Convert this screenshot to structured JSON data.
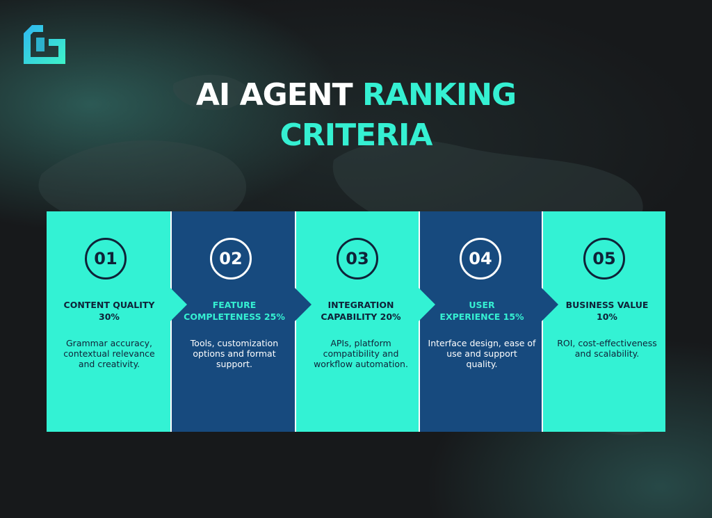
{
  "colors": {
    "accent": "#33f2d4",
    "navy": "#174a7e",
    "dark_text": "#0f2238",
    "background": "#17191b"
  },
  "logo": {
    "icon": "brand-logo-icon"
  },
  "title": {
    "part1": "AI AGENT",
    "part2": "RANKING",
    "part3": "CRITERIA"
  },
  "criteria": [
    {
      "number": "01",
      "heading": "CONTENT QUALITY\n30%",
      "description": "Grammar accuracy,\ncontextual relevance\nand creativity.",
      "weight_percent": 30,
      "theme": "teal"
    },
    {
      "number": "02",
      "heading": "FEATURE\nCOMPLETENESS 25%",
      "description": "Tools, customization\noptions and format\nsupport.",
      "weight_percent": 25,
      "theme": "navy"
    },
    {
      "number": "03",
      "heading": "INTEGRATION\nCAPABILITY 20%",
      "description": "APIs, platform\ncompatibility and\nworkflow automation.",
      "weight_percent": 20,
      "theme": "teal"
    },
    {
      "number": "04",
      "heading": "USER\nEXPERIENCE 15%",
      "description": "Interface design, ease of\nuse and support\nquality.",
      "weight_percent": 15,
      "theme": "navy"
    },
    {
      "number": "05",
      "heading": "BUSINESS VALUE\n10%",
      "description": "ROI, cost-effectiveness\nand scalability.",
      "weight_percent": 10,
      "theme": "teal"
    }
  ]
}
